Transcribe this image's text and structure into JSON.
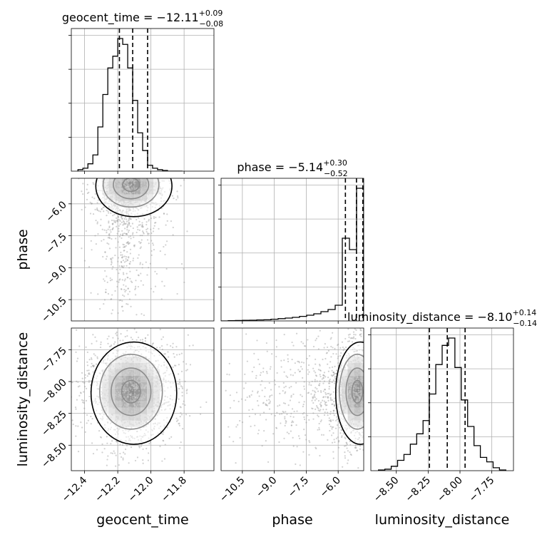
{
  "chart_data": {
    "type": "corner",
    "parameters": [
      {
        "name": "geocent_time",
        "label": "geocent_time",
        "title": {
          "prefix": "geocent_time = ",
          "value": "−12.11",
          "plus": "+0.09",
          "minus": "−0.08"
        },
        "range": [
          -12.48,
          -11.62
        ],
        "ticks": [
          -12.4,
          -12.2,
          -12.0,
          -11.8
        ],
        "tick_labels": [
          "−12.4",
          "−12.2",
          "−12.0",
          "−11.8"
        ],
        "quantiles": [
          -12.19,
          -12.11,
          -12.02
        ],
        "hist_edges": [
          -12.44,
          -12.41,
          -12.38,
          -12.35,
          -12.32,
          -12.29,
          -12.26,
          -12.23,
          -12.2,
          -12.17,
          -12.14,
          -12.11,
          -12.08,
          -12.05,
          -12.02,
          -11.99,
          -11.96,
          -11.93,
          -11.9,
          -11.87,
          -11.84,
          -11.81
        ],
        "hist_counts": [
          0.01,
          0.02,
          0.05,
          0.11,
          0.3,
          0.52,
          0.7,
          0.78,
          0.9,
          0.86,
          0.7,
          0.48,
          0.26,
          0.14,
          0.04,
          0.02,
          0.01,
          0.005,
          0,
          0,
          0
        ]
      },
      {
        "name": "phase",
        "label": "phase",
        "title": {
          "prefix": "phase = ",
          "value": "−5.14",
          "plus": "+0.30",
          "minus": "−0.52"
        },
        "range": [
          -11.5,
          -4.8
        ],
        "ticks": [
          -10.5,
          -9.0,
          -7.5,
          -6.0
        ],
        "tick_labels": [
          "−10.5",
          "−9.0",
          "−7.5",
          "−6.0"
        ],
        "quantiles": [
          -5.66,
          -5.14,
          -4.84
        ],
        "hist_edges": [
          -11.5,
          -11.165,
          -10.83,
          -10.495,
          -10.16,
          -9.825,
          -9.49,
          -9.155,
          -8.82,
          -8.485,
          -8.15,
          -7.815,
          -7.48,
          -7.145,
          -6.81,
          -6.475,
          -6.14,
          -5.805,
          -5.47,
          -5.135,
          -4.8
        ],
        "hist_counts": [
          0,
          0.002,
          0.003,
          0.004,
          0.005,
          0.007,
          0.008,
          0.012,
          0.016,
          0.02,
          0.025,
          0.032,
          0.04,
          0.05,
          0.065,
          0.08,
          0.11,
          0.58,
          0.5,
          0.93
        ]
      },
      {
        "name": "luminosity_distance",
        "label": "luminosity_distance",
        "title": {
          "prefix": "luminosity_distance = ",
          "value": "−8.10",
          "plus": "+0.14",
          "minus": "−0.14"
        },
        "range": [
          -8.7,
          -7.58
        ],
        "ticks": [
          -8.5,
          -8.25,
          -8.0,
          -7.75
        ],
        "tick_labels": [
          "−8.50",
          "−8.25",
          "−8.00",
          "−7.75"
        ],
        "quantiles": [
          -8.24,
          -8.1,
          -7.96
        ],
        "hist_edges": [
          -8.64,
          -8.59,
          -8.54,
          -8.49,
          -8.44,
          -8.39,
          -8.34,
          -8.29,
          -8.24,
          -8.19,
          -8.14,
          -8.09,
          -8.04,
          -7.99,
          -7.94,
          -7.89,
          -7.84,
          -7.79,
          -7.74,
          -7.69,
          -7.64
        ],
        "hist_counts": [
          0.005,
          0.01,
          0.03,
          0.07,
          0.11,
          0.18,
          0.25,
          0.34,
          0.52,
          0.72,
          0.85,
          0.9,
          0.7,
          0.48,
          0.3,
          0.17,
          0.09,
          0.06,
          0.02,
          0.005
        ]
      }
    ],
    "pairs": [
      {
        "x": "geocent_time",
        "y": "phase",
        "center": [
          -12.12,
          -5.1
        ],
        "spread": [
          0.08,
          0.5
        ],
        "tail_x": [
          -12.3,
          -11.6
        ],
        "tail_y": [
          -11.5,
          -5.0
        ]
      },
      {
        "x": "geocent_time",
        "y": "luminosity_distance",
        "center": [
          -12.12,
          -8.08
        ],
        "spread": [
          0.09,
          0.14
        ]
      },
      {
        "x": "phase",
        "y": "luminosity_distance",
        "center": [
          -5.1,
          -8.08
        ],
        "spread": [
          0.4,
          0.14
        ],
        "tail_x": [
          -11.3,
          -5.0
        ]
      }
    ],
    "grid": true,
    "colors": {
      "line": "#000000",
      "grid": "#b0b0b0",
      "scatter": "#9a9a9a"
    }
  }
}
